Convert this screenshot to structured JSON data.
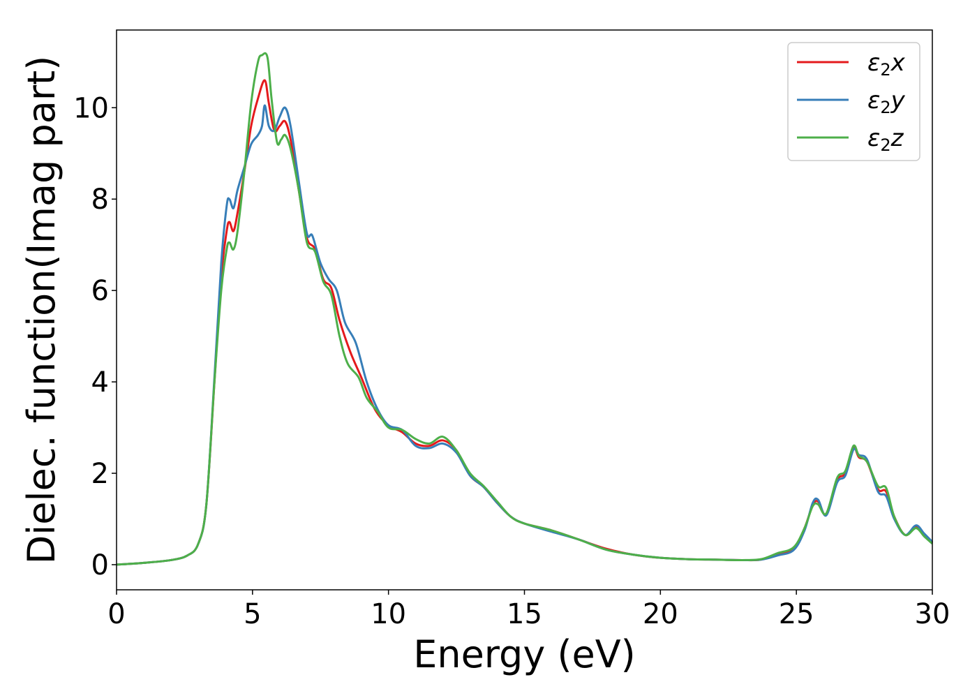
{
  "chart_data": {
    "type": "line",
    "xlabel": "Energy (eV)",
    "ylabel": "Dielec. function(Imag part)",
    "xlim": [
      0,
      30
    ],
    "ylim": [
      -0.55,
      11.7
    ],
    "xticks": [
      0,
      5,
      10,
      15,
      20,
      25,
      30
    ],
    "yticks": [
      0,
      2,
      4,
      6,
      8,
      10
    ],
    "grid": false,
    "legend_position": "top-right",
    "series": [
      {
        "name": "ε2x",
        "legend": {
          "base": "ε",
          "sub": "2",
          "axis": "x"
        },
        "color": "#e41a1c",
        "points": [
          [
            0,
            0
          ],
          [
            1,
            0.04
          ],
          [
            2,
            0.1
          ],
          [
            2.6,
            0.2
          ],
          [
            3.0,
            0.45
          ],
          [
            3.3,
            1.3
          ],
          [
            3.6,
            4.0
          ],
          [
            3.85,
            6.3
          ],
          [
            4.05,
            7.3
          ],
          [
            4.15,
            7.5
          ],
          [
            4.3,
            7.3
          ],
          [
            4.45,
            7.7
          ],
          [
            4.7,
            8.6
          ],
          [
            4.95,
            9.6
          ],
          [
            5.2,
            10.2
          ],
          [
            5.45,
            10.6
          ],
          [
            5.6,
            10.1
          ],
          [
            5.8,
            9.5
          ],
          [
            6.0,
            9.6
          ],
          [
            6.2,
            9.7
          ],
          [
            6.4,
            9.3
          ],
          [
            6.7,
            8.2
          ],
          [
            7.0,
            7.15
          ],
          [
            7.3,
            6.9
          ],
          [
            7.6,
            6.25
          ],
          [
            7.9,
            6.05
          ],
          [
            8.2,
            5.35
          ],
          [
            8.6,
            4.65
          ],
          [
            9.0,
            4.1
          ],
          [
            9.5,
            3.4
          ],
          [
            10.0,
            3.05
          ],
          [
            10.5,
            2.9
          ],
          [
            11.0,
            2.65
          ],
          [
            11.5,
            2.6
          ],
          [
            12.0,
            2.72
          ],
          [
            12.5,
            2.5
          ],
          [
            13.0,
            1.95
          ],
          [
            13.5,
            1.7
          ],
          [
            14.0,
            1.35
          ],
          [
            14.5,
            1.05
          ],
          [
            15.0,
            0.9
          ],
          [
            16.0,
            0.75
          ],
          [
            17.0,
            0.55
          ],
          [
            18.0,
            0.35
          ],
          [
            19.0,
            0.22
          ],
          [
            20.0,
            0.15
          ],
          [
            21.0,
            0.12
          ],
          [
            22.0,
            0.11
          ],
          [
            23.0,
            0.1
          ],
          [
            23.7,
            0.11
          ],
          [
            24.3,
            0.22
          ],
          [
            24.9,
            0.35
          ],
          [
            25.3,
            0.8
          ],
          [
            25.6,
            1.3
          ],
          [
            25.8,
            1.38
          ],
          [
            26.1,
            1.1
          ],
          [
            26.5,
            1.85
          ],
          [
            26.8,
            2.0
          ],
          [
            27.1,
            2.55
          ],
          [
            27.3,
            2.35
          ],
          [
            27.6,
            2.25
          ],
          [
            28.0,
            1.65
          ],
          [
            28.3,
            1.6
          ],
          [
            28.6,
            1.05
          ],
          [
            29.0,
            0.65
          ],
          [
            29.4,
            0.82
          ],
          [
            29.7,
            0.65
          ],
          [
            30.0,
            0.48
          ]
        ]
      },
      {
        "name": "ε2y",
        "legend": {
          "base": "ε",
          "sub": "2",
          "axis": "y"
        },
        "color": "#377eb8",
        "points": [
          [
            0,
            0
          ],
          [
            1,
            0.04
          ],
          [
            2,
            0.1
          ],
          [
            2.6,
            0.2
          ],
          [
            3.0,
            0.45
          ],
          [
            3.3,
            1.3
          ],
          [
            3.6,
            4.1
          ],
          [
            3.85,
            6.6
          ],
          [
            4.05,
            7.85
          ],
          [
            4.15,
            8.0
          ],
          [
            4.3,
            7.8
          ],
          [
            4.45,
            8.2
          ],
          [
            4.7,
            8.7
          ],
          [
            4.95,
            9.2
          ],
          [
            5.2,
            9.4
          ],
          [
            5.35,
            9.6
          ],
          [
            5.45,
            10.05
          ],
          [
            5.6,
            9.6
          ],
          [
            5.8,
            9.5
          ],
          [
            6.0,
            9.8
          ],
          [
            6.2,
            10.0
          ],
          [
            6.4,
            9.6
          ],
          [
            6.7,
            8.4
          ],
          [
            7.0,
            7.25
          ],
          [
            7.2,
            7.2
          ],
          [
            7.5,
            6.6
          ],
          [
            7.8,
            6.25
          ],
          [
            8.1,
            6.0
          ],
          [
            8.4,
            5.3
          ],
          [
            8.8,
            4.85
          ],
          [
            9.2,
            4.0
          ],
          [
            9.6,
            3.4
          ],
          [
            10.0,
            3.05
          ],
          [
            10.5,
            2.95
          ],
          [
            11.0,
            2.6
          ],
          [
            11.5,
            2.55
          ],
          [
            12.0,
            2.65
          ],
          [
            12.5,
            2.45
          ],
          [
            13.0,
            1.95
          ],
          [
            13.5,
            1.7
          ],
          [
            14.0,
            1.35
          ],
          [
            14.5,
            1.05
          ],
          [
            15.0,
            0.9
          ],
          [
            16.0,
            0.72
          ],
          [
            17.0,
            0.55
          ],
          [
            18.0,
            0.33
          ],
          [
            19.0,
            0.22
          ],
          [
            20.0,
            0.15
          ],
          [
            21.0,
            0.12
          ],
          [
            22.0,
            0.11
          ],
          [
            23.0,
            0.1
          ],
          [
            23.7,
            0.11
          ],
          [
            24.3,
            0.2
          ],
          [
            24.9,
            0.32
          ],
          [
            25.3,
            0.75
          ],
          [
            25.6,
            1.35
          ],
          [
            25.8,
            1.42
          ],
          [
            26.1,
            1.08
          ],
          [
            26.5,
            1.8
          ],
          [
            26.8,
            1.95
          ],
          [
            27.1,
            2.52
          ],
          [
            27.3,
            2.4
          ],
          [
            27.6,
            2.3
          ],
          [
            28.0,
            1.6
          ],
          [
            28.3,
            1.5
          ],
          [
            28.6,
            1.0
          ],
          [
            29.0,
            0.65
          ],
          [
            29.4,
            0.86
          ],
          [
            29.7,
            0.68
          ],
          [
            30.0,
            0.5
          ]
        ]
      },
      {
        "name": "ε2z",
        "legend": {
          "base": "ε",
          "sub": "2",
          "axis": "z"
        },
        "color": "#4daf4a",
        "points": [
          [
            0,
            0
          ],
          [
            1,
            0.04
          ],
          [
            2,
            0.1
          ],
          [
            2.6,
            0.2
          ],
          [
            3.0,
            0.45
          ],
          [
            3.3,
            1.3
          ],
          [
            3.6,
            4.0
          ],
          [
            3.85,
            6.0
          ],
          [
            4.05,
            6.9
          ],
          [
            4.15,
            7.05
          ],
          [
            4.3,
            6.9
          ],
          [
            4.45,
            7.3
          ],
          [
            4.7,
            8.6
          ],
          [
            4.95,
            10.1
          ],
          [
            5.2,
            11.0
          ],
          [
            5.35,
            11.15
          ],
          [
            5.55,
            11.1
          ],
          [
            5.7,
            10.2
          ],
          [
            5.9,
            9.25
          ],
          [
            6.05,
            9.3
          ],
          [
            6.2,
            9.4
          ],
          [
            6.4,
            9.1
          ],
          [
            6.7,
            8.2
          ],
          [
            7.0,
            7.05
          ],
          [
            7.3,
            6.85
          ],
          [
            7.6,
            6.2
          ],
          [
            7.9,
            5.9
          ],
          [
            8.2,
            5.0
          ],
          [
            8.5,
            4.4
          ],
          [
            8.9,
            4.1
          ],
          [
            9.2,
            3.65
          ],
          [
            9.6,
            3.35
          ],
          [
            10.0,
            3.0
          ],
          [
            10.5,
            2.95
          ],
          [
            11.0,
            2.75
          ],
          [
            11.5,
            2.65
          ],
          [
            12.0,
            2.8
          ],
          [
            12.5,
            2.5
          ],
          [
            13.0,
            2.0
          ],
          [
            13.5,
            1.72
          ],
          [
            14.0,
            1.38
          ],
          [
            14.5,
            1.05
          ],
          [
            15.0,
            0.9
          ],
          [
            16.0,
            0.75
          ],
          [
            17.0,
            0.55
          ],
          [
            18.0,
            0.33
          ],
          [
            19.0,
            0.22
          ],
          [
            20.0,
            0.15
          ],
          [
            21.0,
            0.12
          ],
          [
            22.0,
            0.11
          ],
          [
            23.0,
            0.1
          ],
          [
            23.7,
            0.12
          ],
          [
            24.3,
            0.25
          ],
          [
            24.9,
            0.38
          ],
          [
            25.3,
            0.8
          ],
          [
            25.6,
            1.28
          ],
          [
            25.8,
            1.32
          ],
          [
            26.1,
            1.12
          ],
          [
            26.5,
            1.9
          ],
          [
            26.8,
            2.05
          ],
          [
            27.1,
            2.6
          ],
          [
            27.3,
            2.38
          ],
          [
            27.6,
            2.25
          ],
          [
            28.0,
            1.72
          ],
          [
            28.3,
            1.68
          ],
          [
            28.6,
            1.05
          ],
          [
            29.0,
            0.65
          ],
          [
            29.4,
            0.8
          ],
          [
            29.7,
            0.62
          ],
          [
            30.0,
            0.46
          ]
        ]
      }
    ]
  }
}
